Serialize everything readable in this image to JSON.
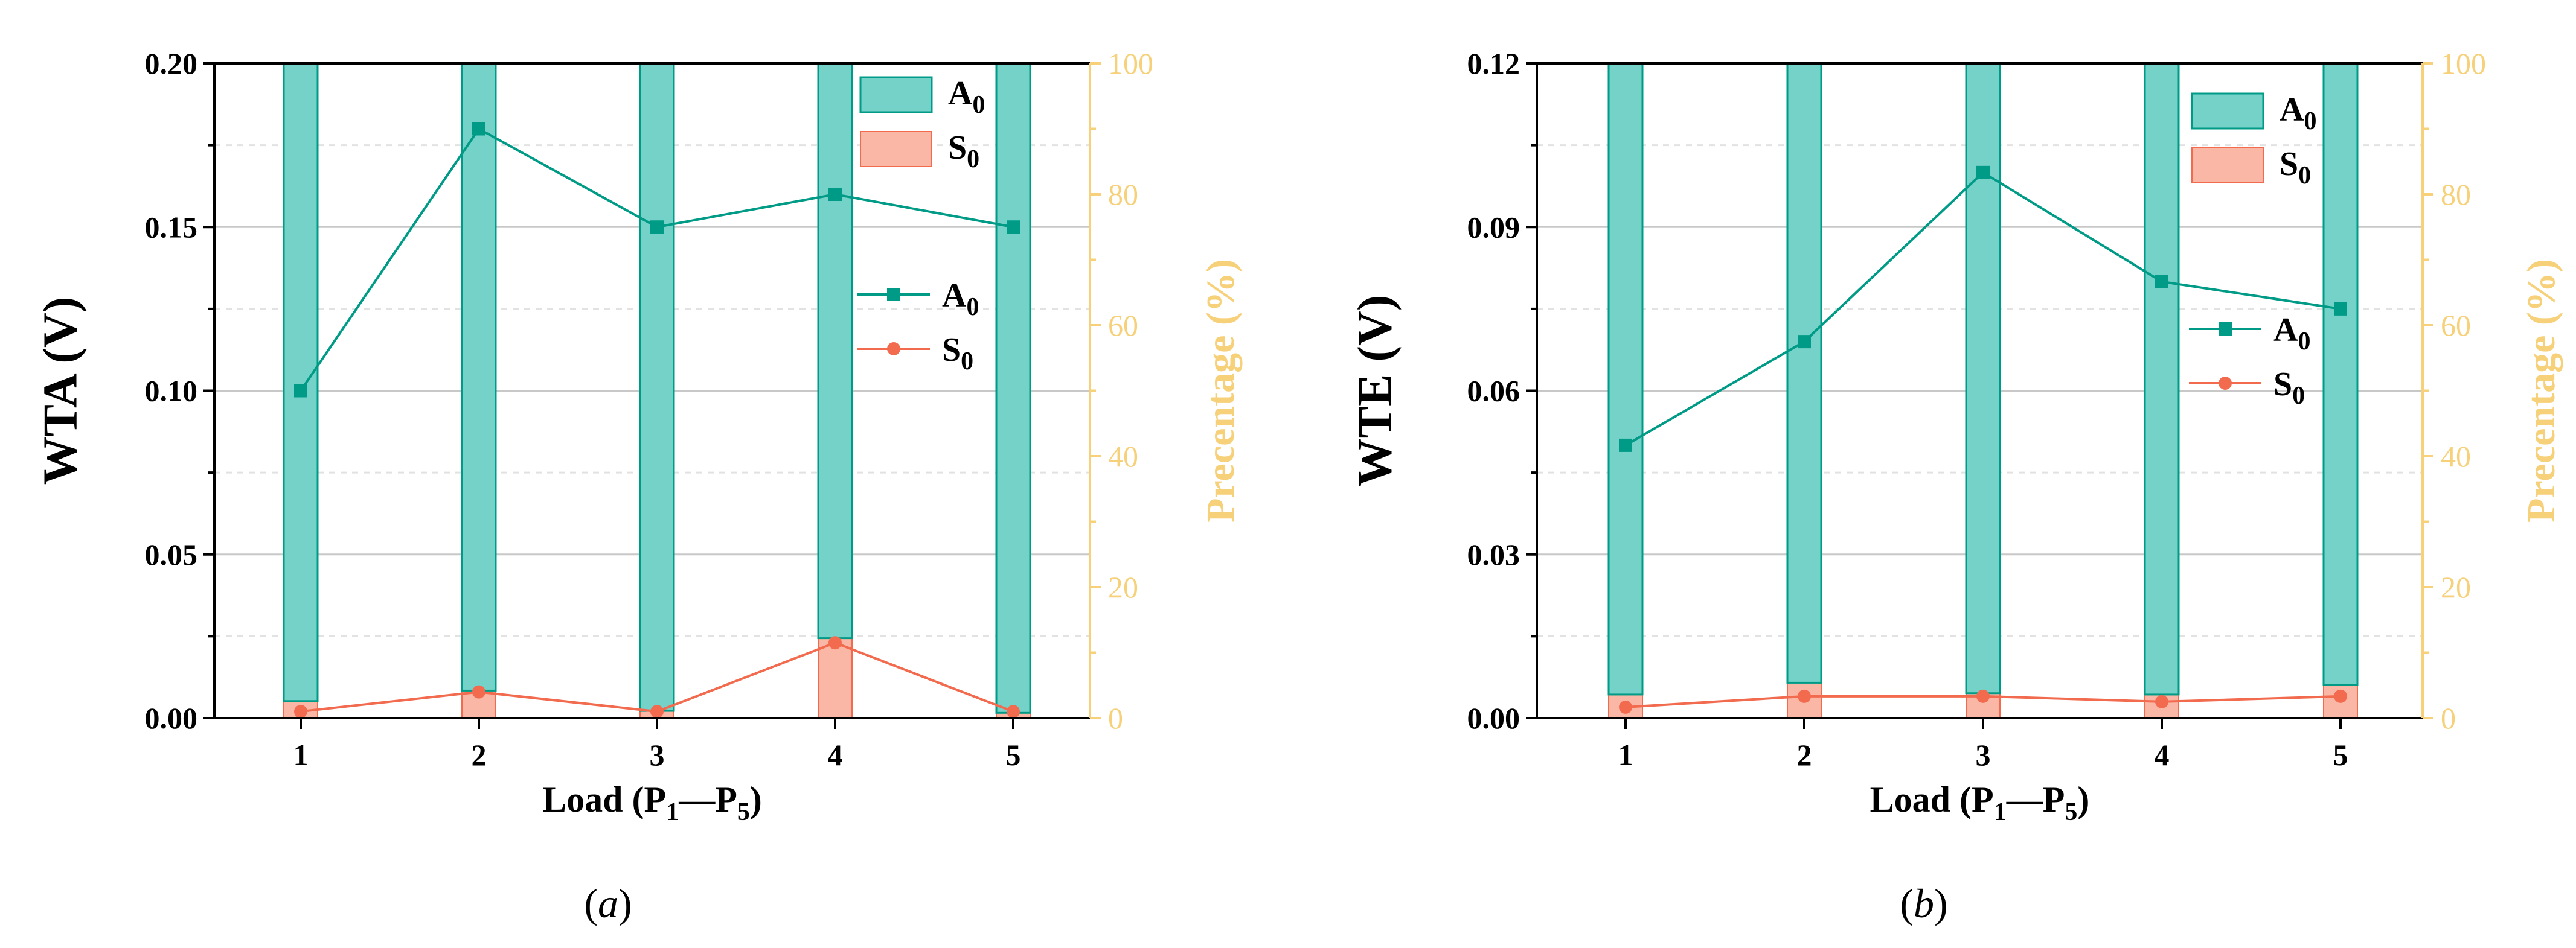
{
  "figure": {
    "panels": [
      {
        "label_open": "(",
        "label_letter": "a",
        "label_close": ")"
      },
      {
        "label_open": "(",
        "label_letter": "b",
        "label_close": ")"
      }
    ]
  },
  "colors": {
    "teal": "#009b87",
    "teal_fill": "#75d2c8",
    "red": "#f26b4f",
    "salmon_fill": "#fbb7a6",
    "right_axis": "#f7d07a",
    "grid": "#c8c8c8",
    "grid_dash": "#e2e2e2"
  },
  "chart_data": [
    {
      "type": "bar+line",
      "panel": "a",
      "xlabel": {
        "main": "Load (P",
        "sub1": "1",
        "dash": "—P",
        "sub2": "5",
        "close": ")"
      },
      "ylabel": "WTA (V)",
      "y2label": "Precentage (%)",
      "categories": [
        "1",
        "2",
        "3",
        "4",
        "5"
      ],
      "ylim": [
        0,
        0.2
      ],
      "yticks": [
        "0.00",
        "0.05",
        "0.10",
        "0.15",
        "0.20"
      ],
      "y2lim": [
        0,
        100
      ],
      "y2ticks": [
        "0",
        "20",
        "40",
        "60",
        "80",
        "100"
      ],
      "bars": {
        "stacked_percent": true,
        "series": [
          {
            "name": "S",
            "sub": "0",
            "values": [
              2.6,
              4.2,
              1.1,
              12.2,
              0.8
            ]
          },
          {
            "name": "A",
            "sub": "0",
            "values": [
              97.4,
              95.8,
              98.9,
              87.8,
              99.2
            ]
          }
        ]
      },
      "lines": [
        {
          "name": "A",
          "sub": "0",
          "marker": "square",
          "values": [
            0.1,
            0.18,
            0.15,
            0.16,
            0.15
          ]
        },
        {
          "name": "S",
          "sub": "0",
          "marker": "circle",
          "values": [
            0.002,
            0.008,
            0.002,
            0.023,
            0.002
          ]
        }
      ],
      "legend_bars": "top-right",
      "legend_lines": "middle-right",
      "grid": true
    },
    {
      "type": "bar+line",
      "panel": "b",
      "xlabel": {
        "main": "Load (P",
        "sub1": "1",
        "dash": "—P",
        "sub2": "5",
        "close": ")"
      },
      "ylabel": "WTE (V)",
      "y2label": "Precentage (%)",
      "categories": [
        "1",
        "2",
        "3",
        "4",
        "5"
      ],
      "ylim": [
        0,
        0.12
      ],
      "yticks": [
        "0.00",
        "0.03",
        "0.06",
        "0.09",
        "0.12"
      ],
      "y2lim": [
        0,
        100
      ],
      "y2ticks": [
        "0",
        "20",
        "40",
        "60",
        "80",
        "100"
      ],
      "bars": {
        "stacked_percent": true,
        "series": [
          {
            "name": "S",
            "sub": "0",
            "values": [
              3.6,
              5.4,
              3.8,
              3.6,
              5.1
            ]
          },
          {
            "name": "A",
            "sub": "0",
            "values": [
              96.4,
              94.6,
              96.2,
              96.4,
              94.9
            ]
          }
        ]
      },
      "lines": [
        {
          "name": "A",
          "sub": "0",
          "marker": "square",
          "values": [
            0.05,
            0.069,
            0.1,
            0.08,
            0.075
          ]
        },
        {
          "name": "S",
          "sub": "0",
          "marker": "circle",
          "values": [
            0.002,
            0.004,
            0.004,
            0.003,
            0.004
          ]
        }
      ],
      "legend_bars": "top-right",
      "legend_lines": "middle-right",
      "grid": true
    }
  ]
}
